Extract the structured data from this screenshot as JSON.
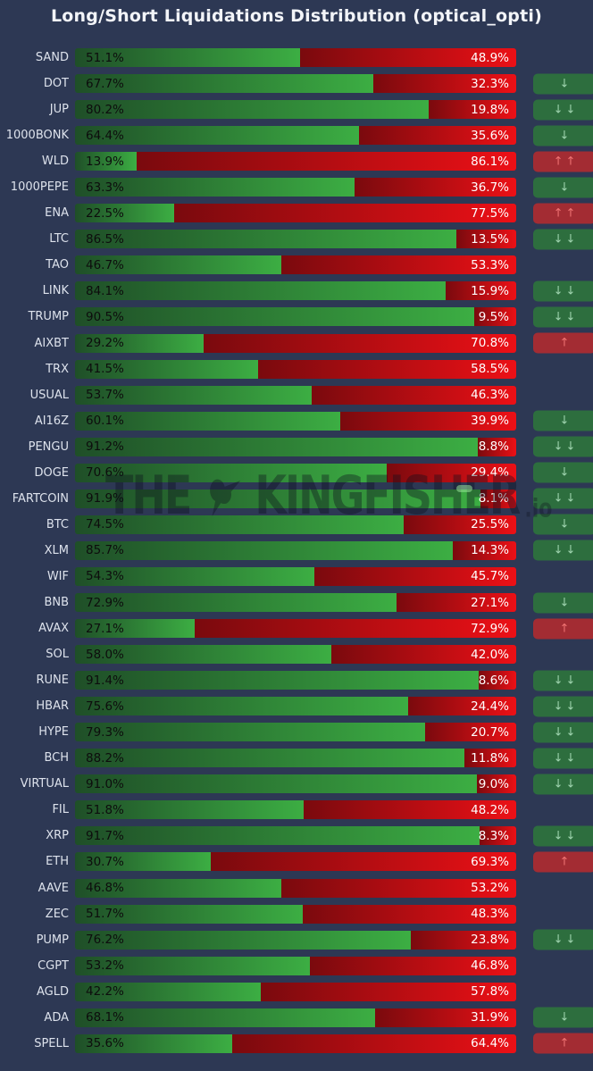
{
  "chart_data": {
    "type": "bar",
    "orientation": "horizontal",
    "stacked": true,
    "title": "Long/Short Liquidations Distribution (optical_opti)",
    "unit": "%",
    "xlim": [
      0,
      100
    ],
    "grid": false,
    "legend": "none",
    "categories": [
      "SAND",
      "DOT",
      "JUP",
      "1000BONK",
      "WLD",
      "1000PEPE",
      "ENA",
      "LTC",
      "TAO",
      "LINK",
      "TRUMP",
      "AIXBT",
      "TRX",
      "USUAL",
      "AI16Z",
      "PENGU",
      "DOGE",
      "FARTCOIN",
      "BTC",
      "XLM",
      "WIF",
      "BNB",
      "AVAX",
      "SOL",
      "RUNE",
      "HBAR",
      "HYPE",
      "BCH",
      "VIRTUAL",
      "FIL",
      "XRP",
      "ETH",
      "AAVE",
      "ZEC",
      "PUMP",
      "CGPT",
      "AGLD",
      "ADA",
      "SPELL"
    ],
    "series": [
      {
        "name": "Long (green)",
        "values": [
          51.1,
          67.7,
          80.2,
          64.4,
          13.9,
          63.3,
          22.5,
          86.5,
          46.7,
          84.1,
          90.5,
          29.2,
          41.5,
          53.7,
          60.1,
          91.2,
          70.6,
          91.9,
          74.5,
          85.7,
          54.3,
          72.9,
          27.1,
          58.0,
          91.4,
          75.6,
          79.3,
          88.2,
          91.0,
          51.8,
          91.7,
          30.7,
          46.8,
          51.7,
          76.2,
          53.2,
          42.2,
          68.1,
          35.6
        ]
      },
      {
        "name": "Short (red)",
        "values": [
          48.9,
          32.3,
          19.8,
          35.6,
          86.1,
          36.7,
          77.5,
          13.5,
          53.3,
          15.9,
          9.5,
          70.8,
          58.5,
          46.3,
          39.9,
          8.8,
          29.4,
          8.1,
          25.5,
          14.3,
          45.7,
          27.1,
          72.9,
          42.0,
          8.6,
          24.4,
          20.7,
          11.8,
          9.0,
          48.2,
          8.3,
          69.3,
          53.2,
          48.3,
          23.8,
          46.8,
          57.8,
          31.9,
          64.4
        ]
      }
    ],
    "signals": [
      "",
      "↓",
      "↓↓",
      "↓",
      "↑↑",
      "↓",
      "↑↑",
      "↓↓",
      "",
      "↓↓",
      "↓↓",
      "↑",
      "",
      "",
      "↓",
      "↓↓",
      "↓",
      "↓↓",
      "↓",
      "↓↓",
      "",
      "↓",
      "↑",
      "",
      "↓↓",
      "↓↓",
      "↓↓",
      "↓↓",
      "↓↓",
      "",
      "↓↓",
      "↑",
      "",
      "",
      "↓↓",
      "",
      "",
      "↓",
      "↑"
    ]
  },
  "watermark": {
    "word1": "THE",
    "word2": "KINGFISHER",
    "suffix": ".io"
  },
  "colors": {
    "background": "#2d3854",
    "title_text": "#f2f4f8",
    "coin_label_text": "#dde2ec",
    "long_gradient_start": "#1f4f28",
    "long_gradient_end": "#3cae43",
    "short_gradient_start": "#7a0a0e",
    "short_gradient_end": "#ec1016",
    "long_label_text": "#0d0d0d",
    "short_label_text": "#ffffff",
    "signal_down_bg": "#2d6e3e",
    "signal_down_text": "#9ed3ae",
    "signal_up_bg": "#a32c33",
    "signal_up_text": "#ef7272"
  }
}
